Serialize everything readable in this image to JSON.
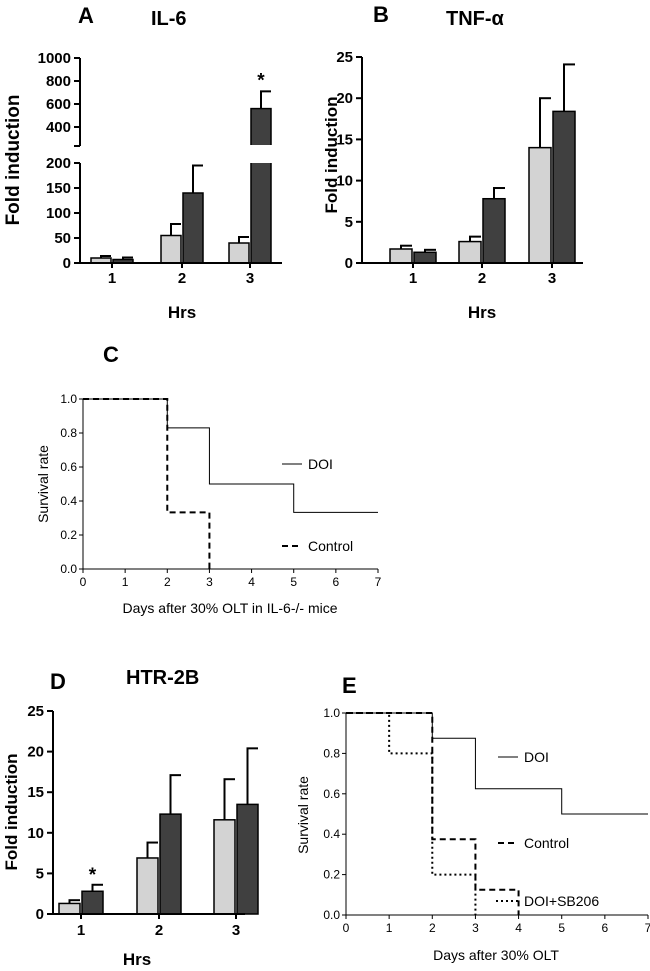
{
  "chart_data": [
    {
      "panel": "A",
      "type": "bar",
      "title": "IL-6",
      "xlabel": "Hrs",
      "ylabel": "Fold induction",
      "categories": [
        "1",
        "2",
        "3"
      ],
      "y_axis_break": {
        "lower_range": [
          0,
          200
        ],
        "upper_range": [
          300,
          1000
        ]
      },
      "yticks_lower": [
        "0",
        "50",
        "100",
        "150",
        "200"
      ],
      "yticks_upper": [
        "400",
        "600",
        "800",
        "1000"
      ],
      "colors": {
        "series1": "#d3d3d3",
        "series2": "#404040"
      },
      "series": [
        {
          "values": [
            10,
            55,
            40
          ],
          "errors": [
            4,
            23,
            12
          ]
        },
        {
          "values": [
            7,
            140,
            560
          ],
          "errors": [
            4,
            55,
            150
          ]
        }
      ],
      "annotations": [
        {
          "text": "*",
          "category": "3",
          "series": 2
        }
      ]
    },
    {
      "panel": "B",
      "type": "bar",
      "title": "TNF-α",
      "xlabel": "Hrs",
      "ylabel": "Fold induction",
      "categories": [
        "1",
        "2",
        "3"
      ],
      "ylim": [
        0,
        25
      ],
      "yticks": [
        "0",
        "5",
        "10",
        "15",
        "20",
        "25"
      ],
      "colors": {
        "series1": "#d3d3d3",
        "series2": "#404040"
      },
      "series": [
        {
          "values": [
            1.7,
            2.6,
            14.0
          ],
          "errors": [
            0.4,
            0.6,
            6.0
          ]
        },
        {
          "values": [
            1.3,
            7.8,
            18.4
          ],
          "errors": [
            0.3,
            1.3,
            5.7
          ]
        }
      ]
    },
    {
      "panel": "C",
      "type": "line",
      "subtype": "survival-step",
      "xlabel": "Days after 30% OLT in IL-6-/- mice",
      "ylabel": "Survival rate",
      "xlim": [
        0,
        7
      ],
      "ylim": [
        0,
        1.0
      ],
      "xticks": [
        "0",
        "1",
        "2",
        "3",
        "4",
        "5",
        "6",
        "7"
      ],
      "yticks": [
        "0.0",
        "0.2",
        "0.4",
        "0.6",
        "0.8",
        "1.0"
      ],
      "series": [
        {
          "name": "DOI",
          "style": "solid",
          "points": [
            [
              0,
              1.0
            ],
            [
              2,
              1.0
            ],
            [
              2,
              0.83
            ],
            [
              3,
              0.83
            ],
            [
              3,
              0.5
            ],
            [
              5,
              0.5
            ],
            [
              5,
              0.333
            ],
            [
              7,
              0.333
            ]
          ]
        },
        {
          "name": "Control",
          "style": "dashed",
          "points": [
            [
              0,
              1.0
            ],
            [
              2,
              1.0
            ],
            [
              2,
              0.333
            ],
            [
              3,
              0.333
            ],
            [
              3,
              0.0
            ]
          ]
        }
      ]
    },
    {
      "panel": "D",
      "type": "bar",
      "title": "HTR-2B",
      "xlabel": "Hrs",
      "ylabel": "Fold induction",
      "categories": [
        "1",
        "2",
        "3"
      ],
      "ylim": [
        0,
        25
      ],
      "yticks": [
        "0",
        "5",
        "10",
        "15",
        "20",
        "25"
      ],
      "colors": {
        "series1": "#d3d3d3",
        "series2": "#404040"
      },
      "series": [
        {
          "values": [
            1.3,
            6.9,
            11.6
          ],
          "errors": [
            0.4,
            1.9,
            5.0
          ]
        },
        {
          "values": [
            2.8,
            12.3,
            13.5
          ],
          "errors": [
            0.8,
            4.8,
            6.9
          ]
        }
      ],
      "annotations": [
        {
          "text": "*",
          "category": "1",
          "series": 2
        }
      ]
    },
    {
      "panel": "E",
      "type": "line",
      "subtype": "survival-step",
      "xlabel": "Days after 30% OLT",
      "ylabel": "Survival rate",
      "xlim": [
        0,
        7
      ],
      "ylim": [
        0,
        1.0
      ],
      "xticks": [
        "0",
        "1",
        "2",
        "3",
        "4",
        "5",
        "6",
        "7"
      ],
      "yticks": [
        "0.0",
        "0.2",
        "0.4",
        "0.6",
        "0.8",
        "1.0"
      ],
      "series": [
        {
          "name": "DOI",
          "style": "solid",
          "points": [
            [
              0,
              1.0
            ],
            [
              2,
              1.0
            ],
            [
              2,
              0.875
            ],
            [
              3,
              0.875
            ],
            [
              3,
              0.625
            ],
            [
              5,
              0.625
            ],
            [
              5,
              0.5
            ],
            [
              7,
              0.5
            ]
          ]
        },
        {
          "name": "Control",
          "style": "dashed",
          "points": [
            [
              0,
              1.0
            ],
            [
              2,
              1.0
            ],
            [
              2,
              0.375
            ],
            [
              3,
              0.375
            ],
            [
              3,
              0.125
            ],
            [
              4,
              0.125
            ],
            [
              4,
              0.0
            ]
          ]
        },
        {
          "name": "DOI+SB206",
          "style": "dotted",
          "points": [
            [
              0,
              1.0
            ],
            [
              1,
              1.0
            ],
            [
              1,
              0.8
            ],
            [
              2,
              0.8
            ],
            [
              2,
              0.2
            ],
            [
              3,
              0.2
            ],
            [
              3,
              0.0
            ]
          ]
        }
      ]
    }
  ]
}
